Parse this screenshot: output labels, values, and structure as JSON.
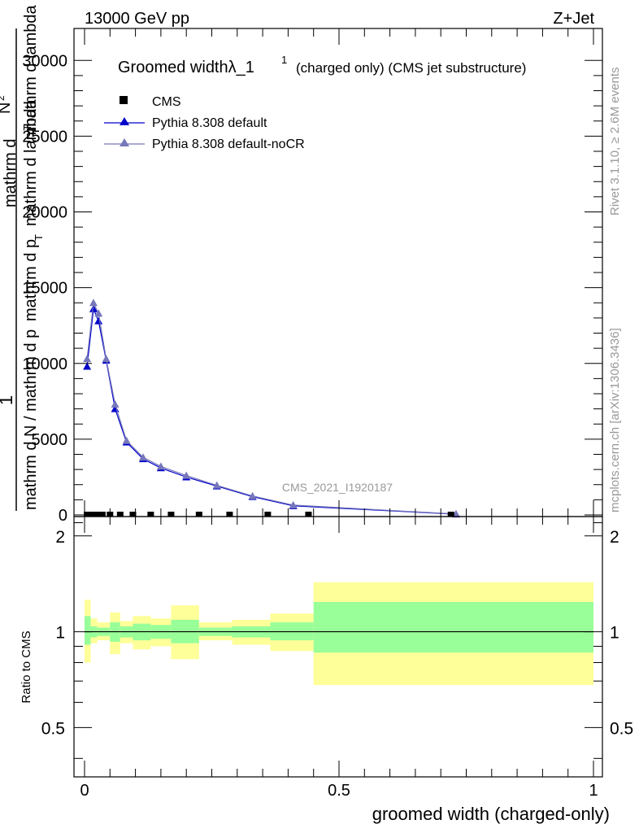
{
  "header": {
    "left": "13000 GeV pp",
    "right": "Z+Jet"
  },
  "side": {
    "rivet": "Rivet 3.1.10, ≥ 2.6M events",
    "mcplots": "mcplots.cern.ch [arXiv:1306.3436]"
  },
  "chart_data": {
    "type": "line",
    "title_main": "Groomed widthλ_1",
    "title_sup": "1",
    "title_rest": "(charged only) (CMS jet substructure)",
    "analysis_label": "CMS_2021_I1920187",
    "xlabel": "groomed width (charged-only)",
    "ylabel_parts": [
      "1",
      "mathrm d N / mathrm d p",
      "mathrm d p",
      "T",
      "mathrm d lambda",
      "mathrm d",
      "N",
      "2",
      "_T",
      "mathrm d lambda"
    ],
    "xlim": [
      0,
      1
    ],
    "ylim": [
      0,
      32000
    ],
    "x_ticks": [
      "0",
      "0.5",
      "1"
    ],
    "y_ticks": [
      "0",
      "5000",
      "10000",
      "15000",
      "20000",
      "25000",
      "30000"
    ],
    "legend": [
      {
        "name": "CMS",
        "marker": "square",
        "color": "#000000"
      },
      {
        "name": "Pythia 8.308 default",
        "marker": "triangle",
        "color": "#0000cc"
      },
      {
        "name": "Pythia 8.308 default-noCR",
        "marker": "triangle",
        "color": "#7777bb"
      }
    ],
    "cms_x": [
      0.005,
      0.0125,
      0.0225,
      0.035,
      0.05,
      0.07,
      0.095,
      0.13,
      0.17,
      0.225,
      0.285,
      0.36,
      0.44,
      0.72
    ],
    "series": [
      {
        "name": "Pythia 8.308 default",
        "x": [
          0.005,
          0.0175,
          0.0275,
          0.0425,
          0.06,
          0.0825,
          0.115,
          0.15,
          0.2,
          0.26,
          0.33,
          0.41,
          0.73
        ],
        "values": [
          9800,
          13600,
          12800,
          10200,
          7000,
          4800,
          3700,
          3100,
          2500,
          1900,
          1200,
          600,
          50
        ]
      },
      {
        "name": "Pythia 8.308 default-noCR",
        "x": [
          0.005,
          0.0175,
          0.0275,
          0.0425,
          0.06,
          0.0825,
          0.115,
          0.15,
          0.2,
          0.26,
          0.33,
          0.41,
          0.73
        ],
        "values": [
          10300,
          14000,
          13300,
          10300,
          7300,
          4900,
          3800,
          3200,
          2600,
          1950,
          1250,
          650,
          60
        ]
      }
    ],
    "ratio": {
      "ylabel": "Ratio to CMS",
      "ylim": [
        0.35,
        2.3
      ],
      "y_ticks": [
        "0.5",
        "1",
        "2"
      ],
      "bins": [
        {
          "x0": 0.0,
          "x1": 0.012,
          "stat_lo": 0.91,
          "stat_hi": 1.12,
          "tot_lo": 0.8,
          "tot_hi": 1.26
        },
        {
          "x0": 0.012,
          "x1": 0.025,
          "stat_lo": 0.96,
          "stat_hi": 1.04,
          "tot_lo": 0.92,
          "tot_hi": 1.1
        },
        {
          "x0": 0.025,
          "x1": 0.05,
          "stat_lo": 0.97,
          "stat_hi": 1.03,
          "tot_lo": 0.94,
          "tot_hi": 1.07
        },
        {
          "x0": 0.05,
          "x1": 0.07,
          "stat_lo": 0.93,
          "stat_hi": 1.07,
          "tot_lo": 0.85,
          "tot_hi": 1.15
        },
        {
          "x0": 0.07,
          "x1": 0.095,
          "stat_lo": 0.96,
          "stat_hi": 1.04,
          "tot_lo": 0.92,
          "tot_hi": 1.08
        },
        {
          "x0": 0.095,
          "x1": 0.13,
          "stat_lo": 0.94,
          "stat_hi": 1.06,
          "tot_lo": 0.88,
          "tot_hi": 1.12
        },
        {
          "x0": 0.13,
          "x1": 0.17,
          "stat_lo": 0.95,
          "stat_hi": 1.05,
          "tot_lo": 0.9,
          "tot_hi": 1.1
        },
        {
          "x0": 0.17,
          "x1": 0.225,
          "stat_lo": 0.92,
          "stat_hi": 1.09,
          "tot_lo": 0.82,
          "tot_hi": 1.21
        },
        {
          "x0": 0.225,
          "x1": 0.29,
          "stat_lo": 0.97,
          "stat_hi": 1.03,
          "tot_lo": 0.94,
          "tot_hi": 1.07
        },
        {
          "x0": 0.29,
          "x1": 0.365,
          "stat_lo": 0.96,
          "stat_hi": 1.04,
          "tot_lo": 0.91,
          "tot_hi": 1.09
        },
        {
          "x0": 0.365,
          "x1": 0.45,
          "stat_lo": 0.94,
          "stat_hi": 1.07,
          "tot_lo": 0.87,
          "tot_hi": 1.14
        },
        {
          "x0": 0.45,
          "x1": 1.0,
          "stat_lo": 0.86,
          "stat_hi": 1.24,
          "tot_lo": 0.68,
          "tot_hi": 1.43
        }
      ]
    },
    "colors": {
      "stat": "#99ff99",
      "total": "#ffff99",
      "cms": "#000000",
      "default": "#0000cc",
      "nocr": "#7777bb"
    }
  }
}
